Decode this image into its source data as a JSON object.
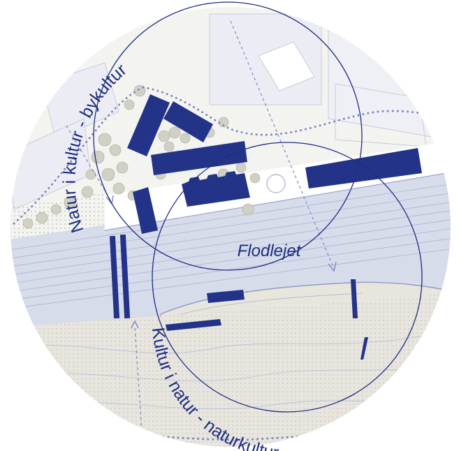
{
  "labels": {
    "top_arc": "Natur i kultur - bykultur",
    "bottom_arc": "Kultur i natur - naturkultur",
    "center": "Flodlejet"
  },
  "colors": {
    "building": "#233388",
    "outline": "#1e2d82",
    "river": "#d7dcea",
    "river_lines": "#aab4d4",
    "land": "#e7e5de",
    "green": "#d4d4c6",
    "trees": "#c8c8bc",
    "paths": "#7d87c4"
  }
}
